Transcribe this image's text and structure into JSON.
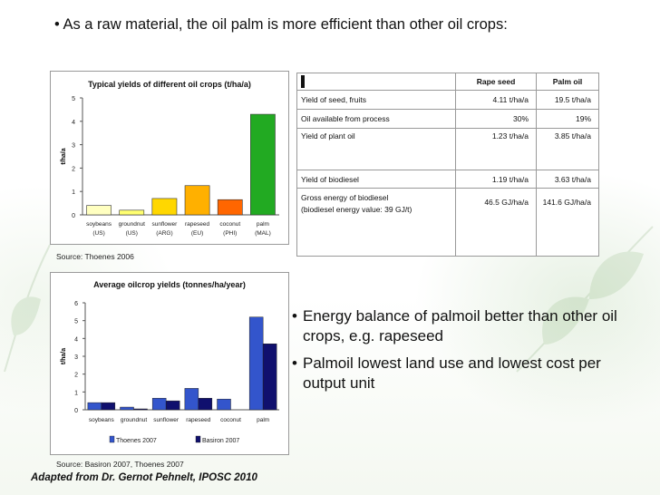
{
  "slide": {
    "bullet_top": "As a raw material, the oil palm is more efficient than other oil crops:",
    "bullets_right": [
      "Energy balance of palmoil better than other oil crops, e.g. rapeseed",
      "Palmoil lowest land use and lowest cost per output unit"
    ],
    "credit": "Adapted from Dr. Gernot Pehnelt, IPOSC 2010",
    "source_1": "Source: Thoenes 2006",
    "source_2": "Source: Basiron 2007, Thoenes 2007"
  },
  "table": {
    "headers": [
      "",
      "Rape seed",
      "Palm oil"
    ],
    "rows": [
      [
        "Yield of seed, fruits",
        "4.11 t/ha/a",
        "19.5 t/ha/a"
      ],
      [
        "Oil available from process",
        "30%",
        "19%"
      ],
      [
        "Yield of plant oil",
        "1.23 t/ha/a",
        "3.85 t/ha/a"
      ],
      [
        "Yield of biodiesel",
        "1.19 t/ha/a",
        "3.63 t/ha/a"
      ],
      [
        "Gross energy of biodiesel\n(biodiesel energy value: 39 GJ/t)",
        "46.5 GJ/ha/a",
        "141.6 GJ/ha/a"
      ]
    ]
  },
  "chart_data": [
    {
      "type": "bar",
      "title": "Typical yields of different oil crops (t/ha/a)",
      "ylabel": "t/ha/a",
      "xlabel": "",
      "ylim": [
        0,
        5
      ],
      "yticks": [
        "0",
        "1",
        "2",
        "3",
        "4",
        "5"
      ],
      "categories": [
        [
          "soybeans",
          "(US)"
        ],
        [
          "groundnut",
          "(US)"
        ],
        [
          "sunflower",
          "(ARG)"
        ],
        [
          "rapeseed",
          "(EU)"
        ],
        [
          "coconut",
          "(PHI)"
        ],
        [
          "palm",
          "(MAL)"
        ]
      ],
      "values": [
        0.4,
        0.2,
        0.7,
        1.25,
        0.65,
        4.3
      ],
      "colors": [
        "#ffffc0",
        "#ffff70",
        "#ffd700",
        "#ffb000",
        "#ff6600",
        "#22aa22"
      ],
      "grid": false
    },
    {
      "type": "bar",
      "title": "Average oilcrop yields (tonnes/ha/year)",
      "ylabel": "t/ha/a",
      "xlabel": "",
      "ylim": [
        0,
        6
      ],
      "yticks": [
        "0",
        "1",
        "2",
        "3",
        "4",
        "5",
        "6"
      ],
      "categories": [
        "soybeans",
        "groundnut",
        "sunflower",
        "rapeseed",
        "coconut",
        "palm"
      ],
      "series": [
        {
          "name": "Thoenes 2007",
          "values": [
            0.4,
            0.15,
            0.65,
            1.2,
            0.6,
            5.2
          ],
          "color": "#3355cc"
        },
        {
          "name": "Basiron 2007",
          "values": [
            0.4,
            0.05,
            0.5,
            0.65,
            0,
            3.7
          ],
          "color": "#10106e"
        }
      ],
      "legend": "bottom",
      "grid": false
    }
  ]
}
